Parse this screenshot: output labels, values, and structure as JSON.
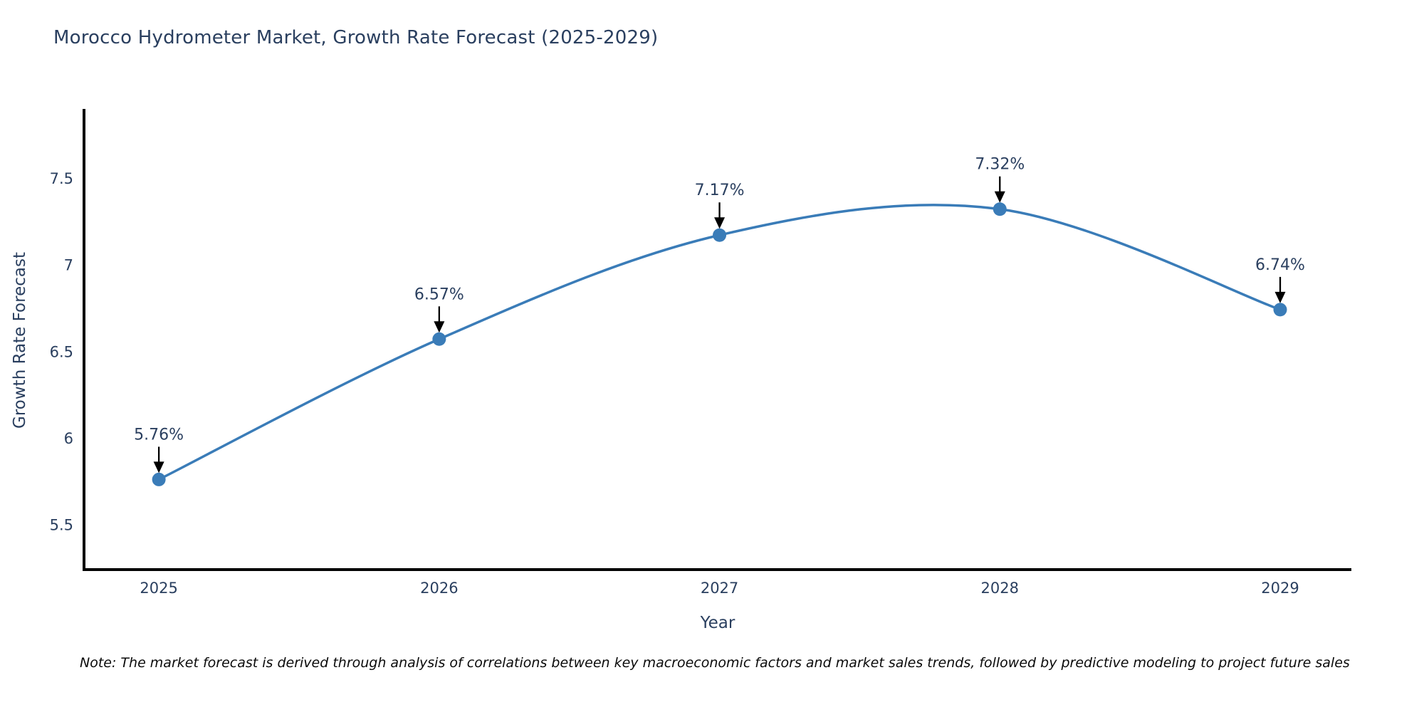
{
  "page": {
    "background": "#ffffff"
  },
  "chart_data": {
    "type": "line",
    "title": "Morocco Hydrometer Market, Growth Rate Forecast (2025-2029)",
    "xlabel": "Year",
    "ylabel": "Growth Rate Forecast",
    "x": [
      2025,
      2026,
      2027,
      2028,
      2029
    ],
    "y": [
      5.76,
      6.57,
      7.17,
      7.32,
      6.74
    ],
    "point_labels": [
      "5.76%",
      "6.57%",
      "7.17%",
      "7.32%",
      "6.74%"
    ],
    "x_ticks": [
      "2025",
      "2026",
      "2027",
      "2028",
      "2029"
    ],
    "y_ticks": [
      "5.5",
      "6",
      "6.5",
      "7",
      "7.5"
    ],
    "y_tick_values": [
      5.5,
      6.0,
      6.5,
      7.0,
      7.5
    ],
    "xlim": [
      2024.733,
      2029.254
    ],
    "ylim": [
      5.24,
      7.89
    ],
    "line_shape": "spline",
    "grid": false,
    "legend": "none",
    "colors": {
      "line": "#3a7cb8",
      "marker": "#3a7cb8",
      "axis": "#000000",
      "tick_text": "#2a3f5f",
      "annotation_text": "#2a3f5f",
      "annotation_arrow": "#000000",
      "title_text": "#2a3f5f"
    }
  },
  "note": {
    "text": "Note: The market forecast is derived through analysis of correlations between key macroeconomic factors and market sales trends, followed by predictive modeling to project future sales"
  }
}
